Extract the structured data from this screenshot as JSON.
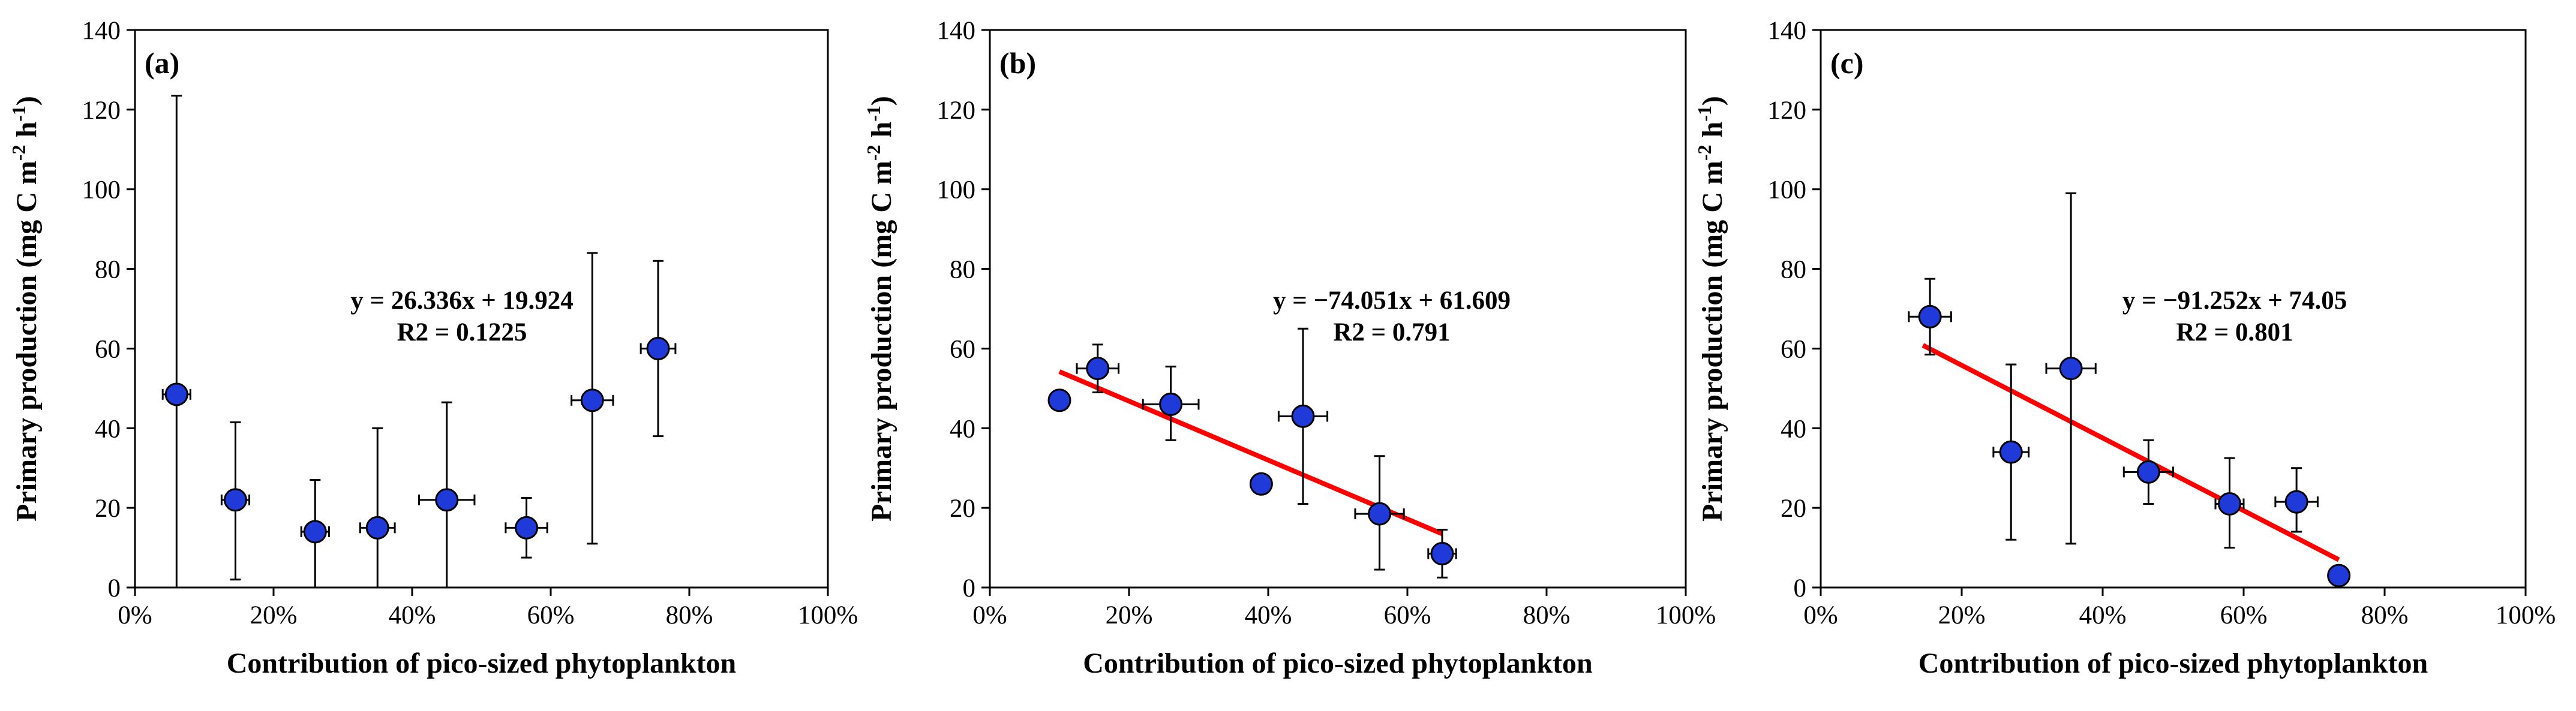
{
  "chart_data": [
    {
      "type": "scatter",
      "panel_label": "(a)",
      "xlabel": "Contribution of pico-sized phytoplankton",
      "ylabel": "Primary production (mg C m",
      "ylabel_sup1": "-2",
      "ylabel_mid": " h",
      "ylabel_sup2": "-1",
      "ylabel_end": ")",
      "xlim": [
        0,
        1
      ],
      "ylim": [
        0,
        140
      ],
      "x_ticks": [
        {
          "value": 0,
          "label": "0%"
        },
        {
          "value": 0.2,
          "label": "20%"
        },
        {
          "value": 0.4,
          "label": "40%"
        },
        {
          "value": 0.6,
          "label": "60%"
        },
        {
          "value": 0.8,
          "label": "80%"
        },
        {
          "value": 1.0,
          "label": "100%"
        }
      ],
      "y_ticks": [
        {
          "value": 0,
          "label": "0"
        },
        {
          "value": 20,
          "label": "20"
        },
        {
          "value": 40,
          "label": "40"
        },
        {
          "value": 60,
          "label": "60"
        },
        {
          "value": 80,
          "label": "80"
        },
        {
          "value": 100,
          "label": "100"
        },
        {
          "value": 120,
          "label": "120"
        },
        {
          "value": 140,
          "label": "140"
        }
      ],
      "points": [
        {
          "x": 0.06,
          "y": 48.5,
          "y_err_low": 48.5,
          "y_err_high": 75,
          "x_err": 0.02
        },
        {
          "x": 0.145,
          "y": 22,
          "y_err_low": 20,
          "y_err_high": 19.5,
          "x_err": 0.02
        },
        {
          "x": 0.26,
          "y": 14,
          "y_err_low": 14,
          "y_err_high": 13,
          "x_err": 0.02
        },
        {
          "x": 0.35,
          "y": 15,
          "y_err_low": 15,
          "y_err_high": 25,
          "x_err": 0.025
        },
        {
          "x": 0.45,
          "y": 22,
          "y_err_low": 22,
          "y_err_high": 24.5,
          "x_err": 0.04
        },
        {
          "x": 0.565,
          "y": 15,
          "y_err_low": 7.5,
          "y_err_high": 7.5,
          "x_err": 0.03
        },
        {
          "x": 0.66,
          "y": 47,
          "y_err_low": 36,
          "y_err_high": 37,
          "x_err": 0.03
        },
        {
          "x": 0.755,
          "y": 60,
          "y_err_low": 22,
          "y_err_high": 22,
          "x_err": 0.025
        }
      ],
      "trendline": null,
      "equation": "y = 26.336x + 19.924",
      "r2": "R2 = 0.1225"
    },
    {
      "type": "scatter",
      "panel_label": "(b)",
      "xlabel": "Contribution of pico-sized phytoplankton",
      "ylabel": "Primary production (mg C m",
      "ylabel_sup1": "-2",
      "ylabel_mid": " h",
      "ylabel_sup2": "-1",
      "ylabel_end": ")",
      "xlim": [
        0,
        1
      ],
      "ylim": [
        0,
        140
      ],
      "x_ticks": [
        {
          "value": 0,
          "label": "0%"
        },
        {
          "value": 0.2,
          "label": "20%"
        },
        {
          "value": 0.4,
          "label": "40%"
        },
        {
          "value": 0.6,
          "label": "60%"
        },
        {
          "value": 0.8,
          "label": "80%"
        },
        {
          "value": 1.0,
          "label": "100%"
        }
      ],
      "y_ticks": [
        {
          "value": 0,
          "label": "0"
        },
        {
          "value": 20,
          "label": "20"
        },
        {
          "value": 40,
          "label": "40"
        },
        {
          "value": 60,
          "label": "60"
        },
        {
          "value": 80,
          "label": "80"
        },
        {
          "value": 100,
          "label": "100"
        },
        {
          "value": 120,
          "label": "120"
        },
        {
          "value": 140,
          "label": "140"
        }
      ],
      "points": [
        {
          "x": 0.1,
          "y": 47,
          "y_err_low": 0,
          "y_err_high": 0,
          "x_err": 0
        },
        {
          "x": 0.155,
          "y": 55,
          "y_err_low": 6,
          "y_err_high": 6,
          "x_err": 0.03
        },
        {
          "x": 0.26,
          "y": 46,
          "y_err_low": 9,
          "y_err_high": 9.5,
          "x_err": 0.04
        },
        {
          "x": 0.39,
          "y": 26,
          "y_err_low": 0,
          "y_err_high": 0,
          "x_err": 0
        },
        {
          "x": 0.45,
          "y": 43,
          "y_err_low": 22,
          "y_err_high": 22,
          "x_err": 0.035
        },
        {
          "x": 0.56,
          "y": 18.5,
          "y_err_low": 14,
          "y_err_high": 14.5,
          "x_err": 0.035
        },
        {
          "x": 0.65,
          "y": 8.5,
          "y_err_low": 6,
          "y_err_high": 6,
          "x_err": 0.02
        }
      ],
      "trendline": {
        "slope": -74.051,
        "intercept": 61.609,
        "x_start": 0.1,
        "x_end": 0.65,
        "color": "#ff0000"
      },
      "equation": "y = −74.051x + 61.609",
      "r2": "R2 = 0.791"
    },
    {
      "type": "scatter",
      "panel_label": "(c)",
      "xlabel": "Contribution of pico-sized phytoplankton",
      "ylabel": "Primary production (mg C m",
      "ylabel_sup1": "-2",
      "ylabel_mid": " h",
      "ylabel_sup2": "-1",
      "ylabel_end": ")",
      "xlim": [
        0,
        1
      ],
      "ylim": [
        0,
        140
      ],
      "x_ticks": [
        {
          "value": 0,
          "label": "0%"
        },
        {
          "value": 0.2,
          "label": "20%"
        },
        {
          "value": 0.4,
          "label": "40%"
        },
        {
          "value": 0.6,
          "label": "60%"
        },
        {
          "value": 0.8,
          "label": "80%"
        },
        {
          "value": 1.0,
          "label": "100%"
        }
      ],
      "y_ticks": [
        {
          "value": 0,
          "label": "0"
        },
        {
          "value": 20,
          "label": "20"
        },
        {
          "value": 40,
          "label": "40"
        },
        {
          "value": 60,
          "label": "60"
        },
        {
          "value": 80,
          "label": "80"
        },
        {
          "value": 100,
          "label": "100"
        },
        {
          "value": 120,
          "label": "120"
        },
        {
          "value": 140,
          "label": "140"
        }
      ],
      "points": [
        {
          "x": 0.155,
          "y": 68,
          "y_err_low": 9.5,
          "y_err_high": 9.5,
          "x_err": 0.03
        },
        {
          "x": 0.27,
          "y": 34,
          "y_err_low": 22,
          "y_err_high": 22,
          "x_err": 0.025
        },
        {
          "x": 0.355,
          "y": 55,
          "y_err_low": 44,
          "y_err_high": 44,
          "x_err": 0.035
        },
        {
          "x": 0.465,
          "y": 29,
          "y_err_low": 8,
          "y_err_high": 8,
          "x_err": 0.035
        },
        {
          "x": 0.58,
          "y": 21,
          "y_err_low": 11,
          "y_err_high": 11.5,
          "x_err": 0.02
        },
        {
          "x": 0.675,
          "y": 21.5,
          "y_err_low": 7.5,
          "y_err_high": 8.5,
          "x_err": 0.03
        },
        {
          "x": 0.735,
          "y": 3,
          "y_err_low": 0,
          "y_err_high": 0,
          "x_err": 0
        }
      ],
      "trendline": {
        "slope": -91.252,
        "intercept": 74.05,
        "x_start": 0.145,
        "x_end": 0.735,
        "color": "#ff0000"
      },
      "equation": "y = −91.252x + 74.05",
      "r2": "R2 = 0.801"
    }
  ],
  "colors": {
    "marker_fill": "#1f3ad8",
    "marker_stroke": "#000000",
    "trendline": "#ff0000",
    "axis": "#000000"
  }
}
